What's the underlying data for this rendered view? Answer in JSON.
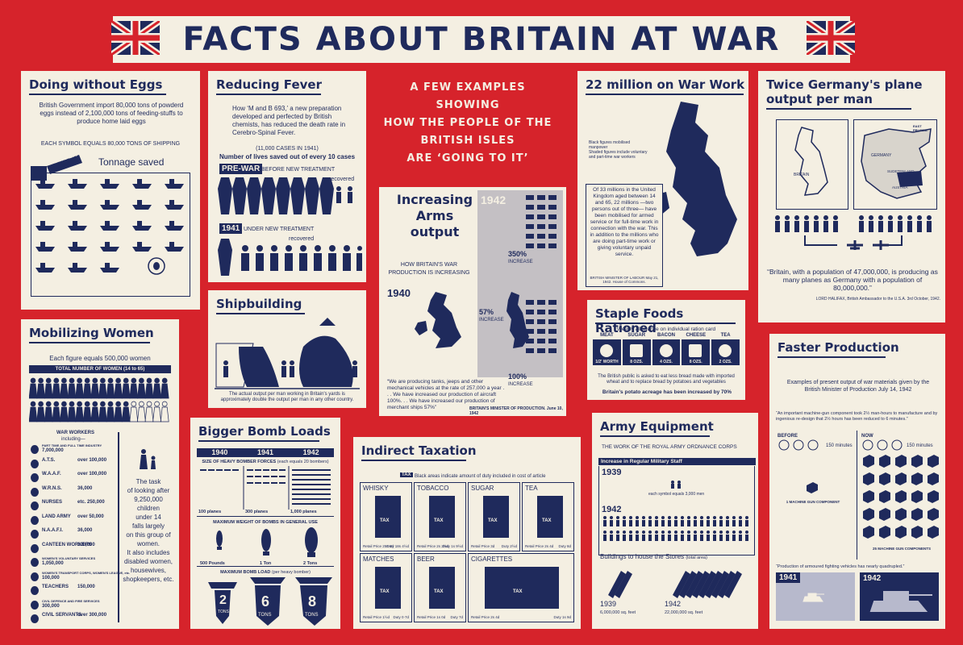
{
  "banner": {
    "title": "FACTS ABOUT BRITAIN AT WAR"
  },
  "center": {
    "lines": [
      "A FEW EXAMPLES",
      "SHOWING",
      "HOW THE PEOPLE OF THE",
      "BRITISH ISLES",
      "ARE ‘GOING TO IT’"
    ]
  },
  "eggs": {
    "title": "Doing without Eggs",
    "text": "British Government import 80,000 tons of powderd eggs instead of 2,100,000 tons of feeding-stuffs to produce home laid eggs",
    "symbol": "EACH SYMBOL EQUALS 80,000 TONS OF SHIPPING",
    "powder": "POWDER",
    "tonnage": "Tonnage saved"
  },
  "fever": {
    "title": "Reducing Fever",
    "text": "How ‘M and B 693,’ a new preparation developed and perfected by British chemists, has reduced the death rate in Cerebro-Spinal Fever.",
    "cases": "(11,000 CASES IN 1941)",
    "lives": "Number of lives saved out of every 10 cases",
    "prewar": "PRE-WAR",
    "prewar_sub": "BEFORE NEW TREATMENT",
    "recovered": "recovered",
    "y1941": "1941",
    "y1941_sub": "UNDER NEW TREATMENT",
    "recovered2": "recovered"
  },
  "arms": {
    "title_lines": [
      "Increasing",
      "Arms",
      "output"
    ],
    "y1942": "1942",
    "sub": "HOW BRITAIN'S WAR PRODUCTION IS INCREASING",
    "y1940": "1940",
    "pct350": "350%",
    "pct57": "57%",
    "pct100": "100%",
    "increase": "INCREASE",
    "quote": "“We are producing tanks, jeeps and other mechanical vehicles at the rate of 257,000 a year . . . We have increased our production of aircraft 100%. . . We have increased our production of merchant ships 57%”",
    "source": "BRITAIN'S MINISTER OF PRODUCTION. June 10, 1942"
  },
  "war_work": {
    "title": "22 million on War Work",
    "legend1": "Black figures mobilised manpower",
    "legend2": "Shaded figures include voluntary and part-time war workers",
    "text": "Of 33 millions in the United Kingdom aged between 14 and 65, 22 millions —two persons out of three— have been mobilised for armed service or for full-time work in connection with the war. This in addition to the millions who are doing part-time work or giving voluntary unpaid service.",
    "source": "BRITISH MINISTER OF LABOUR May 21, 1942. House of Commons."
  },
  "planes": {
    "title_lines": [
      "Twice Germany's plane",
      "output per man"
    ],
    "map_britain": "BRITAIN",
    "map_germany": "GERMANY",
    "map_sudeten": "SUDETENLAND",
    "map_austria": "AUSTRIA",
    "map_prussia": "EAST PRUSSIA",
    "quote": "“Britain, with a population of 47,000,000, is producing as many planes as Germany with a population of 80,000,000.”",
    "source": "LORD HALIFAX, British Ambassador to the U.S.A. 3rd October, 1942."
  },
  "women": {
    "title": "Mobilizing Women",
    "each": "Each figure equals 500,000 women",
    "total": "TOTAL NUMBER OF WOMEN",
    "total_sub": "(14 to 65)",
    "workers": "WAR WORKERS",
    "including": "including—",
    "list": [
      [
        "PART TIME AND FULL TIME INDUSTRY",
        "7,000,000"
      ],
      [
        "A.T.S.",
        "over 100,000"
      ],
      [
        "W.A.A.F.",
        "over 100,000"
      ],
      [
        "W.R.N.S.",
        "36,000"
      ],
      [
        "NURSES",
        "etc. 250,000"
      ],
      [
        "LAND ARMY",
        "over 50,000"
      ],
      [
        "N.A.A.F.I.",
        "36,000"
      ],
      [
        "CANTEEN WORKERS",
        "120,000"
      ],
      [
        "WOMEN'S VOLUNTARY SERVICES",
        "1,050,000"
      ],
      [
        "WOMEN'S TRANSPORT CORPS, WOMEN'S LEAGUE, etc.",
        "100,000"
      ],
      [
        "TEACHERS",
        "150,000"
      ],
      [
        "CIVIL DEFENCE AND FIRE SERVICES",
        "300,000"
      ],
      [
        "CIVIL SERVANTS",
        "over 300,000"
      ]
    ],
    "task": [
      "The task",
      "of looking after",
      "9,250,000",
      "children",
      "under 14",
      "falls largely",
      "on this group of",
      "women.",
      "It also includes",
      "disabled women,",
      "housewives,",
      "shopkeepers, etc."
    ]
  },
  "ships": {
    "title": "Shipbuilding",
    "caption": "The actual output per man working in Britain's yards is approximately double the output per man in any other country."
  },
  "bombs": {
    "title": "Bigger Bomb Loads",
    "years": [
      "1940",
      "1941",
      "1942"
    ],
    "size": "SIZE OF HEAVY BOMBER FORCES",
    "size_sub": "(each  equals 20 bombers)",
    "planes": [
      "100 planes",
      "300 planes",
      "1,000 planes"
    ],
    "weight": "MAXIMUM WEIGHT OF BOMBS IN GENERAL USE",
    "weights": [
      "500 Pounds",
      "1 Ton",
      "2 Tons"
    ],
    "load": "MAXIMUM BOMB LOAD",
    "load_sub": "(per heavy bomber)",
    "loads": [
      "2",
      "6",
      "8"
    ],
    "tons": "TONS"
  },
  "tax": {
    "title": "Indirect Taxation",
    "legend": "Black areas indicate amount of duty included in cost of article",
    "tag": "TAX",
    "items": [
      {
        "name": "WHISKY",
        "price": "Retail Price 25s 6d",
        "duty": "Duty 18s 4½d"
      },
      {
        "name": "TOBACCO",
        "price": "Retail Price 2s 2½d",
        "duty": "Duty 1s 9½d"
      },
      {
        "name": "SUGAR",
        "price": "Retail Price 3d",
        "duty": "Duty 2½d"
      },
      {
        "name": "TEA",
        "price": "Retail Price 2s 4d",
        "duty": "Duty 8d"
      },
      {
        "name": "MATCHES",
        "price": "Retail Price 1½d",
        "duty": "Duty 0·7d"
      },
      {
        "name": "BEER",
        "price": "Retail Price 1s 0d",
        "duty": "Duty 7d"
      },
      {
        "name": "CIGARETTES",
        "price": "Retail Price 2s 4d",
        "duty": "Duty 1s 9d"
      }
    ]
  },
  "foods": {
    "title": "Staple Foods Rationed",
    "sub": "Weekly allowance on individual ration card",
    "items": [
      [
        "MEAT",
        "1/2' WORTH"
      ],
      [
        "SUGAR",
        "8 OZS."
      ],
      [
        "BACON",
        "4 OZS."
      ],
      [
        "CHEESE",
        "8 OZS."
      ],
      [
        "TEA",
        "2 OZS."
      ]
    ],
    "text": "The British public is asked to eat less bread made with imported wheat and to replace bread by potatoes and vegetables",
    "potato": "Britain's potato acreage has been increased by 70%"
  },
  "army": {
    "title": "Army Equipment",
    "sub": "THE WORK OF THE ROYAL ARMY ORDNANCE CORPS",
    "inc": "Increase in Regular Military Staff",
    "y1939": "1939",
    "symbol": "each symbol equals 3,000 men",
    "y1942": "1942",
    "bldg": "Buildings to house the Stores",
    "bldg_sub": "(total area)",
    "b1939": "1939",
    "b1939_v": "6,000,000 sq. feet",
    "b1942": "1942",
    "b1942_v": "22,000,000 sq. feet"
  },
  "faster": {
    "title": "Faster Production",
    "sub": "Examples of present output of war materials given by the British Minister of Production July 14, 1942",
    "quote1": "“An important machine-gun component took 2½ man-hours to manufacture and by ingenious re-design that 2½ hours has been reduced to 6 minutes.”",
    "before": "BEFORE",
    "now": "NOW",
    "min1": "150 minutes",
    "min2": "150 minutes",
    "comp1": "1 MACHINE GUN COMPONENT",
    "comp25": "25 MACHINE GUN COMPONENTS",
    "quote2": "“Production of armoured fighting vehicles has nearly quadrupled.”",
    "y1941": "1941",
    "y1942": "1942"
  },
  "colors": {
    "red": "#d6232b",
    "navy": "#1f2a5c",
    "cream": "#f4efe2"
  }
}
